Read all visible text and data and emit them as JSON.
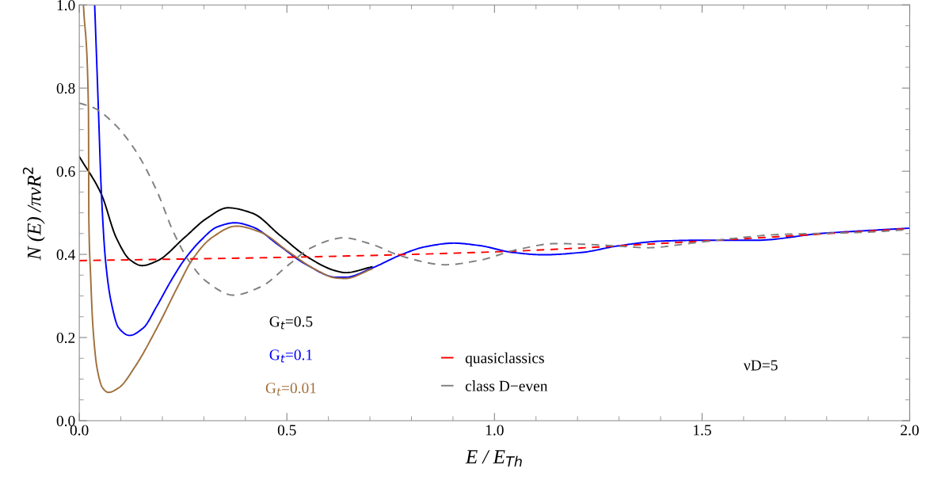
{
  "chart_data": {
    "type": "line",
    "xlabel": "E / E$_{Th}$",
    "ylabel": "N (E) /πνR$^{2}$",
    "xlim": [
      0.0,
      2.0
    ],
    "ylim": [
      0.0,
      1.0
    ],
    "xticks": [
      {
        "value": 0,
        "label": "0.0"
      },
      0.5,
      {
        "value": 1,
        "label": "1.0"
      },
      1.5,
      {
        "value": 2,
        "label": "2.0"
      }
    ],
    "yticks": [
      {
        "value": 0,
        "label": "0.0"
      },
      0.2,
      0.4,
      0.6,
      0.8,
      {
        "value": 1,
        "label": "1.0"
      }
    ],
    "grid": false,
    "legend": "bottom",
    "marker": "none",
    "annotations": [
      "νD=5"
    ],
    "series": [
      {
        "name": "G$_{t}$=0.5",
        "color": "#000000",
        "line_style": "solid",
        "x": [
          0,
          0.053,
          0.089,
          0.122,
          0.151,
          0.187,
          0.253,
          0.306,
          0.358,
          0.417,
          0.483,
          0.549,
          0.619,
          0.641,
          0.705
        ],
        "values": [
          0.635,
          0.545,
          0.44,
          0.387,
          0.373,
          0.384,
          0.44,
          0.486,
          0.512,
          0.499,
          0.446,
          0.394,
          0.36,
          0.356,
          0.37
        ]
      },
      {
        "name": "G$_{t}$=0.1",
        "color": "#0000ff",
        "line_style": "solid",
        "x": [
          0.037,
          0.046,
          0.053,
          0.063,
          0.076,
          0.095,
          0.121,
          0.154,
          0.187,
          0.22,
          0.253,
          0.293,
          0.332,
          0.375,
          0.417,
          0.483,
          0.549,
          0.619,
          0.641,
          0.705,
          0.775,
          0.832,
          0.901,
          0.965,
          1.041,
          1.117,
          1.213,
          1.295,
          1.403,
          1.498,
          1.632,
          1.784,
          1.911,
          2.0
        ],
        "values": [
          1.0,
          0.749,
          0.552,
          0.387,
          0.289,
          0.223,
          0.205,
          0.223,
          0.276,
          0.335,
          0.387,
          0.434,
          0.466,
          0.476,
          0.466,
          0.42,
          0.374,
          0.345,
          0.345,
          0.367,
          0.399,
          0.418,
          0.427,
          0.421,
          0.405,
          0.399,
          0.405,
          0.42,
          0.432,
          0.434,
          0.434,
          0.45,
          0.458,
          0.463
        ]
      },
      {
        "name": "G$_{t}$=0.01",
        "color": "#a0703c",
        "line_style": "solid",
        "x": [
          0.01,
          0.022,
          0.023,
          0.027,
          0.033,
          0.043,
          0.056,
          0.07,
          0.095,
          0.135,
          0.187,
          0.24,
          0.272,
          0.319,
          0.378,
          0.437,
          0.503,
          0.568,
          0.619,
          0.641,
          0.705
        ],
        "values": [
          1.0,
          0.749,
          0.486,
          0.355,
          0.223,
          0.125,
          0.079,
          0.068,
          0.079,
          0.131,
          0.223,
          0.328,
          0.387,
          0.44,
          0.468,
          0.453,
          0.407,
          0.364,
          0.343,
          0.342,
          0.365
        ]
      },
      {
        "name": "quasiclassics",
        "color": "#ff0000",
        "line_style": "dashed",
        "x": [
          0,
          0.5,
          1.0,
          1.5,
          2.0
        ],
        "values": [
          0.385,
          0.393,
          0.406,
          0.432,
          0.462
        ]
      },
      {
        "name": "class D−even",
        "color": "#808080",
        "line_style": "dashed",
        "x": [
          0,
          0.036,
          0.089,
          0.135,
          0.187,
          0.227,
          0.266,
          0.306,
          0.371,
          0.437,
          0.503,
          0.555,
          0.615,
          0.635,
          0.705,
          0.775,
          0.882,
          0.965,
          1.053,
          1.149,
          1.244,
          1.295,
          1.371,
          1.467,
          1.562,
          1.689,
          1.816,
          1.911,
          2.0
        ],
        "values": [
          0.764,
          0.752,
          0.709,
          0.65,
          0.552,
          0.453,
          0.381,
          0.335,
          0.302,
          0.322,
          0.374,
          0.414,
          0.437,
          0.44,
          0.424,
          0.396,
          0.375,
          0.386,
          0.411,
          0.426,
          0.423,
          0.42,
          0.416,
          0.426,
          0.437,
          0.448,
          0.451,
          0.454,
          0.46
        ]
      }
    ]
  }
}
